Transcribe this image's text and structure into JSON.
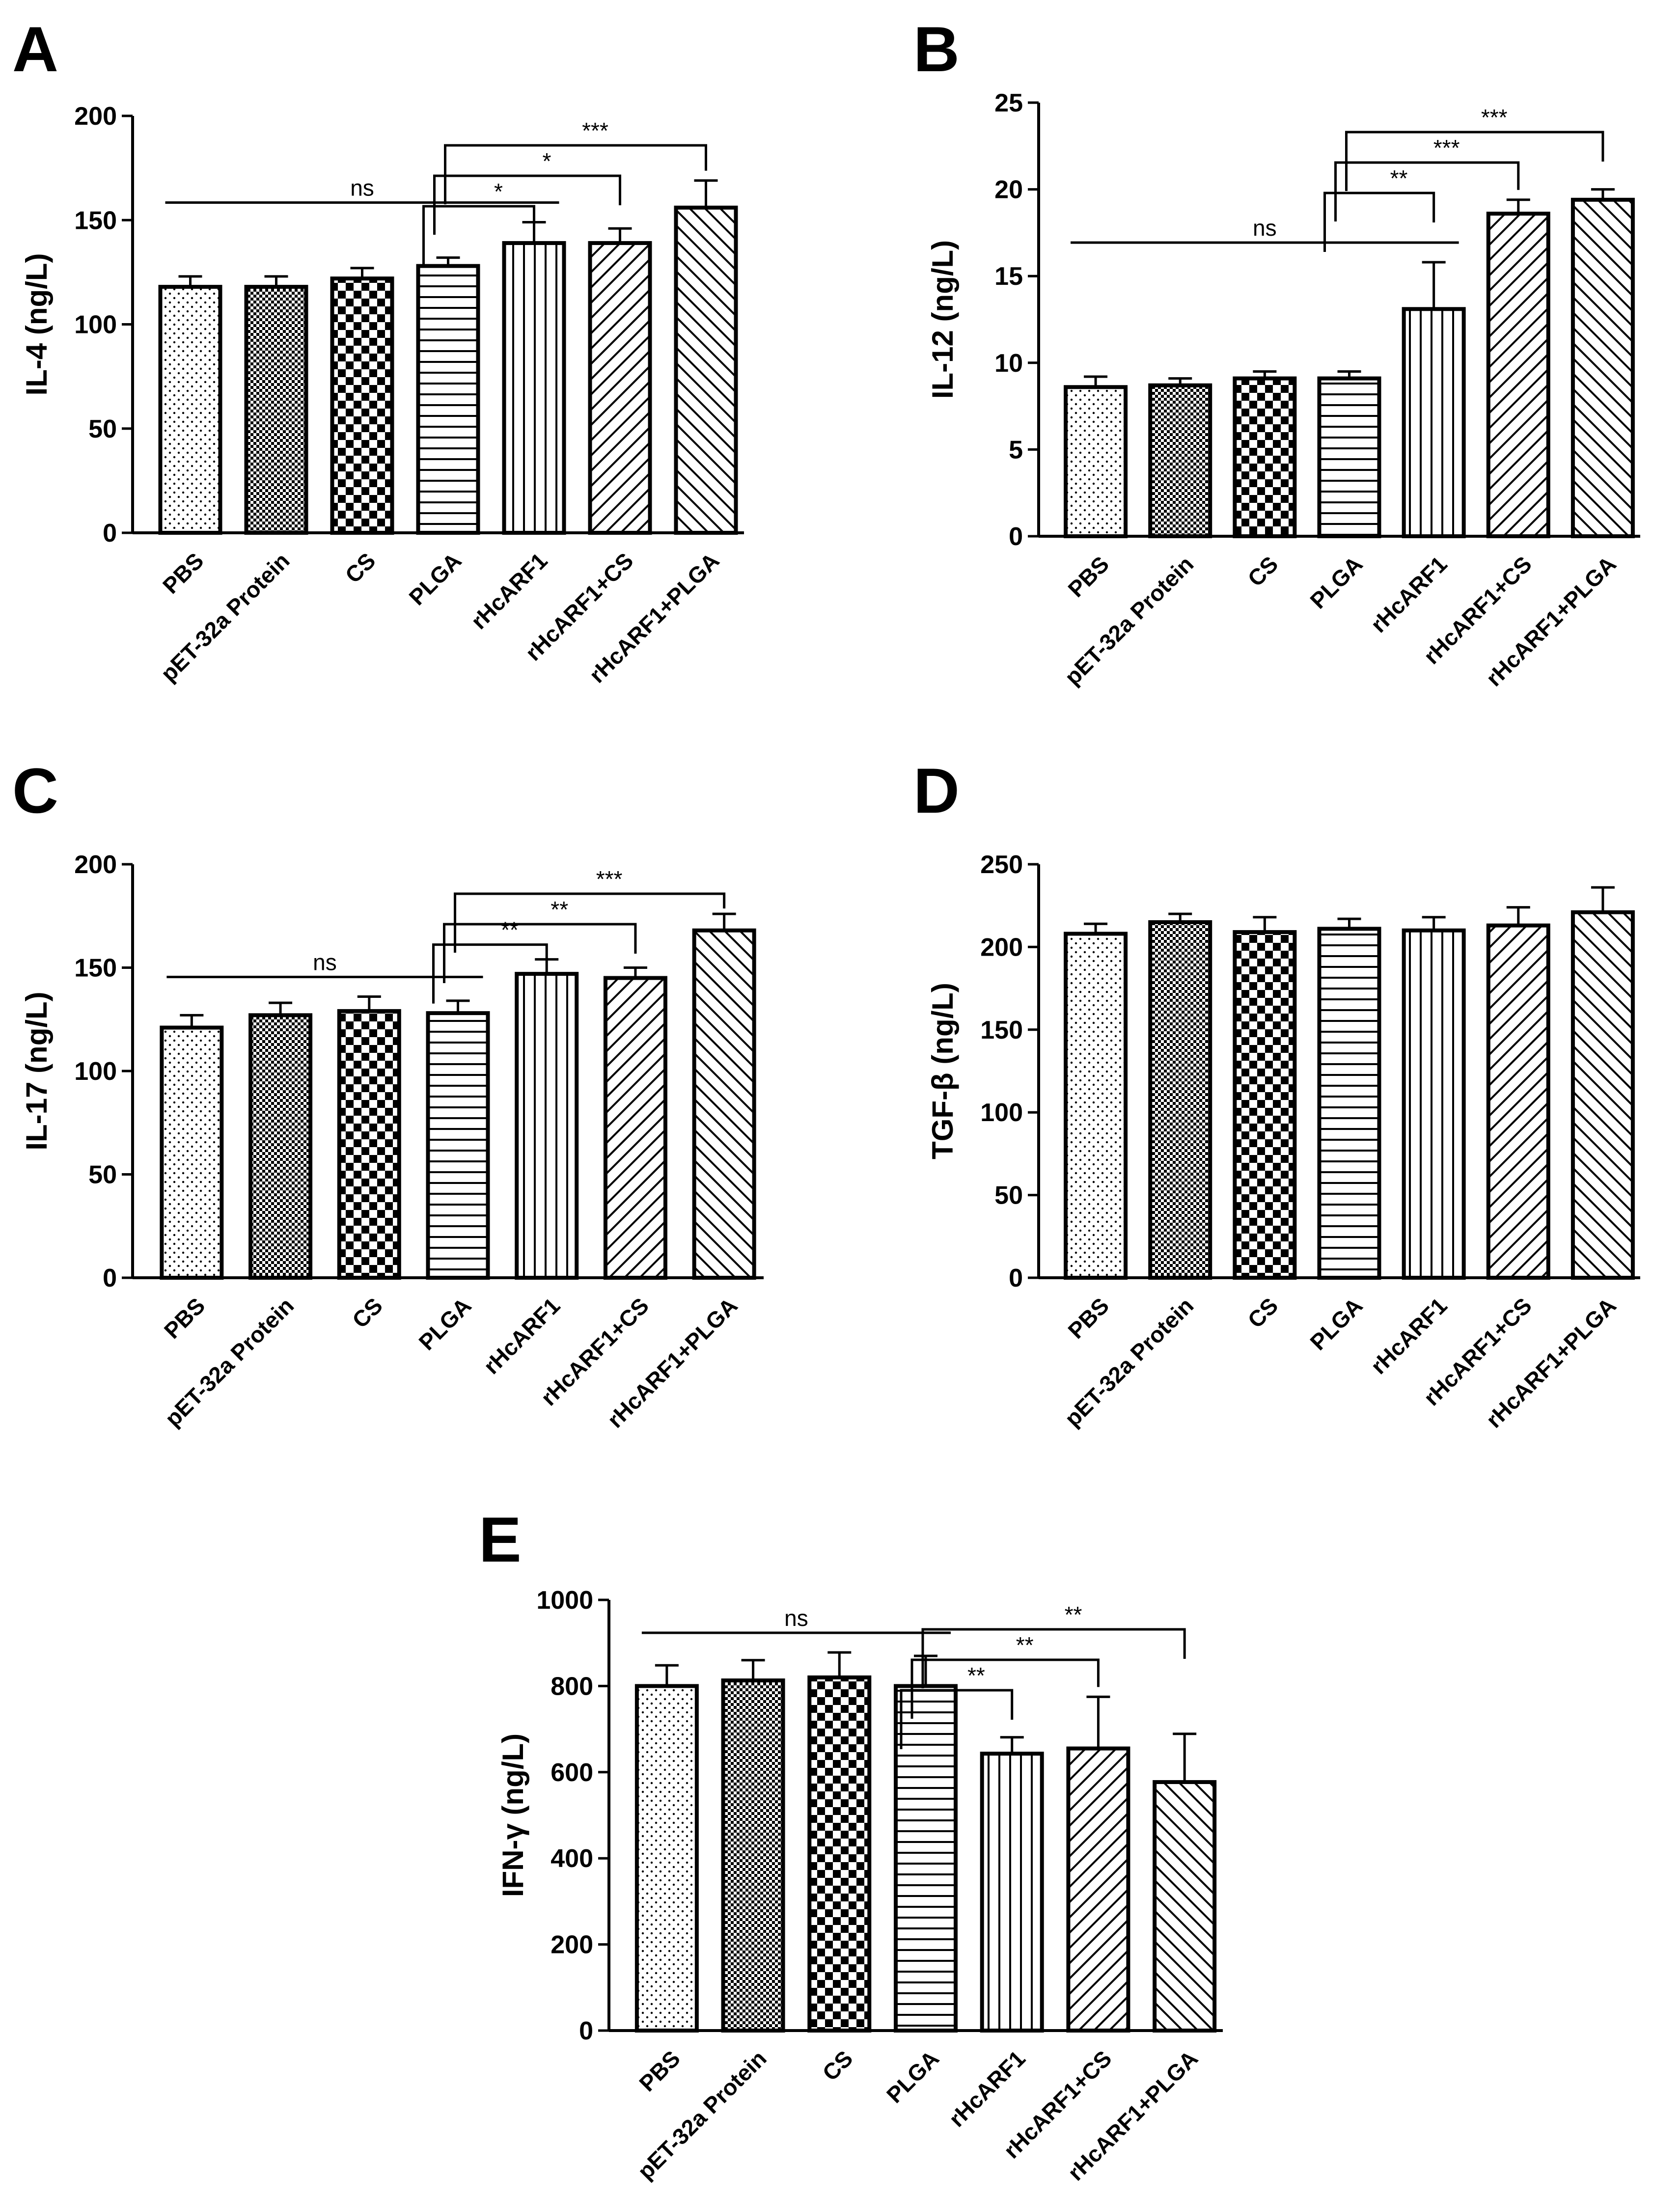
{
  "patterns": [
    "stipple",
    "fine-check",
    "checker",
    "hlines",
    "vlines",
    "diag-fwd",
    "diag-back"
  ],
  "chart_data": [
    {
      "type": "bar",
      "panel": "A",
      "ylabel": "IL-4 (ng/L)",
      "ylim": [
        0,
        200
      ],
      "yticks": [
        0,
        50,
        100,
        150,
        200
      ],
      "categories": [
        "PBS",
        "pET-32a Protein",
        "CS",
        "PLGA",
        "rHcARF1",
        "rHcARF1+CS",
        "rHcARF1+PLGA"
      ],
      "values": [
        118,
        118,
        122,
        128,
        139,
        139,
        156
      ],
      "errors": [
        5,
        5,
        5,
        4,
        10,
        7,
        13
      ],
      "annotations": [
        {
          "type": "line",
          "from": 0,
          "to": 4,
          "label": "ns"
        },
        {
          "type": "bracket",
          "from": 3,
          "to": 4,
          "label": "*"
        },
        {
          "type": "bracket",
          "from": 3,
          "to": 5,
          "label": "*"
        },
        {
          "type": "bracket",
          "from": 3,
          "to": 6,
          "label": "***"
        }
      ]
    },
    {
      "type": "bar",
      "panel": "B",
      "ylabel": "IL-12 (ng/L)",
      "ylim": [
        0,
        25
      ],
      "yticks": [
        0,
        5,
        10,
        15,
        20,
        25
      ],
      "categories": [
        "PBS",
        "pET-32a Protein",
        "CS",
        "PLGA",
        "rHcARF1",
        "rHcARF1+CS",
        "rHcARF1+PLGA"
      ],
      "values": [
        8.6,
        8.7,
        9.1,
        9.1,
        13.1,
        18.6,
        19.4
      ],
      "errors": [
        0.6,
        0.4,
        0.4,
        0.4,
        2.7,
        0.8,
        0.6
      ],
      "annotations": [
        {
          "type": "line",
          "from": 0,
          "to": 4,
          "label": "ns"
        },
        {
          "type": "bracket",
          "from": 3,
          "to": 4,
          "label": "**"
        },
        {
          "type": "bracket",
          "from": 3,
          "to": 5,
          "label": "***"
        },
        {
          "type": "bracket",
          "from": 3,
          "to": 6,
          "label": "***"
        }
      ]
    },
    {
      "type": "bar",
      "panel": "C",
      "ylabel": "IL-17 (ng/L)",
      "ylim": [
        0,
        200
      ],
      "yticks": [
        0,
        50,
        100,
        150,
        200
      ],
      "categories": [
        "PBS",
        "pET-32a Protein",
        "CS",
        "PLGA",
        "rHcARF1",
        "rHcARF1+CS",
        "rHcARF1+PLGA"
      ],
      "values": [
        121,
        127,
        129,
        128,
        147,
        145,
        168
      ],
      "errors": [
        6,
        6,
        7,
        6,
        7,
        5,
        8
      ],
      "annotations": [
        {
          "type": "line",
          "from": 0,
          "to": 3,
          "label": "ns"
        },
        {
          "type": "bracket",
          "from": 3,
          "to": 4,
          "label": "**"
        },
        {
          "type": "bracket",
          "from": 3,
          "to": 5,
          "label": "**"
        },
        {
          "type": "bracket",
          "from": 3,
          "to": 6,
          "label": "***"
        }
      ]
    },
    {
      "type": "bar",
      "panel": "D",
      "ylabel": "TGF-β (ng/L)",
      "ylim": [
        0,
        250
      ],
      "yticks": [
        0,
        50,
        100,
        150,
        200,
        250
      ],
      "categories": [
        "PBS",
        "pET-32a Protein",
        "CS",
        "PLGA",
        "rHcARF1",
        "rHcARF1+CS",
        "rHcARF1+PLGA"
      ],
      "values": [
        208,
        215,
        209,
        211,
        210,
        213,
        221
      ],
      "errors": [
        6,
        5,
        9,
        6,
        8,
        11,
        15
      ],
      "annotations": []
    },
    {
      "type": "bar",
      "panel": "E",
      "ylabel": "IFN-γ (ng/L)",
      "ylim": [
        0,
        1000
      ],
      "yticks": [
        0,
        200,
        400,
        600,
        800,
        1000
      ],
      "categories": [
        "PBS",
        "pET-32a Protein",
        "CS",
        "PLGA",
        "rHcARF1",
        "rHcARF1+CS",
        "rHcARF1+PLGA"
      ],
      "values": [
        800,
        813,
        820,
        800,
        643,
        655,
        577
      ],
      "errors": [
        48,
        47,
        58,
        70,
        38,
        120,
        112
      ],
      "annotations": [
        {
          "type": "line",
          "from": 0,
          "to": 3,
          "label": "ns"
        },
        {
          "type": "bracket",
          "from": 3,
          "to": 4,
          "label": "**"
        },
        {
          "type": "bracket",
          "from": 3,
          "to": 5,
          "label": "**"
        },
        {
          "type": "bracket",
          "from": 3,
          "to": 6,
          "label": "**"
        }
      ]
    }
  ]
}
